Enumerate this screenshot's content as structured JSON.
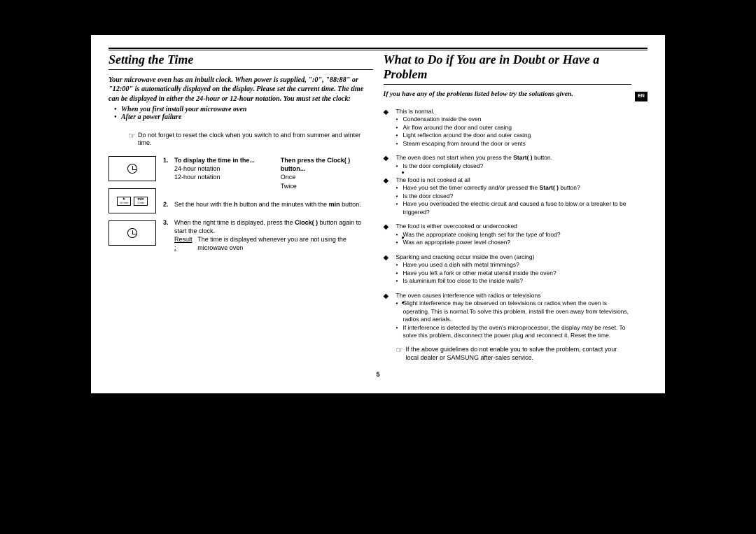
{
  "langTab": "EN",
  "pageNumber": "5",
  "left": {
    "title": "Setting the Time",
    "intro": "Your microwave oven has an inbuilt clock. When power is supplied, \":0\", \"88:88\" or \"12:00\" is automatically displayed on the display. Please set the current time. The time can be displayed in either the 24-hour or 12-hour notation. You must set the clock:",
    "bullets": [
      "When you first install your microwave oven",
      "After a power failure"
    ],
    "noteIcon": "☞",
    "note": "Do not forget to reset the clock when you switch to and from summer and winter time.",
    "diagram2": {
      "h_main": "h",
      "h_sub": "10 min",
      "m_main": "min",
      "m_sub": "1 min"
    },
    "steps": {
      "s1": {
        "num": "1.",
        "col1_hdr": "To display the time in the...",
        "col1_r1": "24-hour notation",
        "col1_r2": "12-hour notation",
        "col2_hdr": "Then press the Clock(    ) button...",
        "col2_r1": "Once",
        "col2_r2": "Twice"
      },
      "s2": {
        "num": "2.",
        "text_a": "Set the hour with the ",
        "h": "h",
        "text_b": " button and the minutes with the ",
        "min": "min",
        "text_c": " button."
      },
      "s3": {
        "num": "3.",
        "text_a": "When the right time is displayed, press the ",
        "clock": "Clock(    )",
        "text_b": " button again to start the clock.",
        "result_label": "Result :",
        "result_text": "The time is displayed whenever you are not using the microwave oven"
      }
    }
  },
  "right": {
    "title": "What to Do if You are in Doubt or Have a Problem",
    "intro": "If you have any of the problems listed below try the solutions given.",
    "items": [
      {
        "head": "This is normal.",
        "subs": [
          "Condensation inside the oven",
          "Air flow around the door and outer casing",
          "Light reflection around the door and outer casing",
          "Steam escaping from around the door or vents"
        ]
      },
      {
        "head_a": "The oven does not start when you press the ",
        "head_b": "Start(    )",
        "head_c": " button.",
        "subs": [
          "Is the door completely closed?"
        ]
      },
      {
        "head": "The food is not cooked at all",
        "subs_rich": [
          {
            "a": "Have you set the timer correctly and/or pressed the ",
            "b": "Start(    )",
            "c": " button?"
          },
          {
            "a": "Is the door closed?"
          },
          {
            "a": "Have you overloaded the electric circuit and caused a fuse to blow or a breaker to be triggered?"
          }
        ]
      },
      {
        "head": "The food is either overcooked or undercooked",
        "subs": [
          "Was the appropriate cooking length set for the type of food?",
          "Was an appropriate power level chosen?"
        ]
      },
      {
        "head": "Sparking and cracking occur inside the oven (arcing)",
        "subs": [
          "Have you used a dish with metal trimmings?",
          "Have you left a fork or other metal utensil inside the oven?",
          "Is aluminium foil too close to the inside walls?"
        ]
      },
      {
        "head": "The oven causes interference with radios or televisions",
        "subs": [
          "Slight interference may be observed on televisions or radios when the oven is operating. This is normal.To solve this problem, install the oven away from televisions, radios and aerials.",
          "If interference is detected by the oven's microprocessor, the display may be reset. To solve this problem, disconnect the power plug and reconnect it. Reset the time."
        ]
      }
    ],
    "finalNoteIcon": "☞",
    "finalNote": "If the above guidelines do not enable you to solve the problem, contact your local dealer or SAMSUNG after-sales service."
  }
}
